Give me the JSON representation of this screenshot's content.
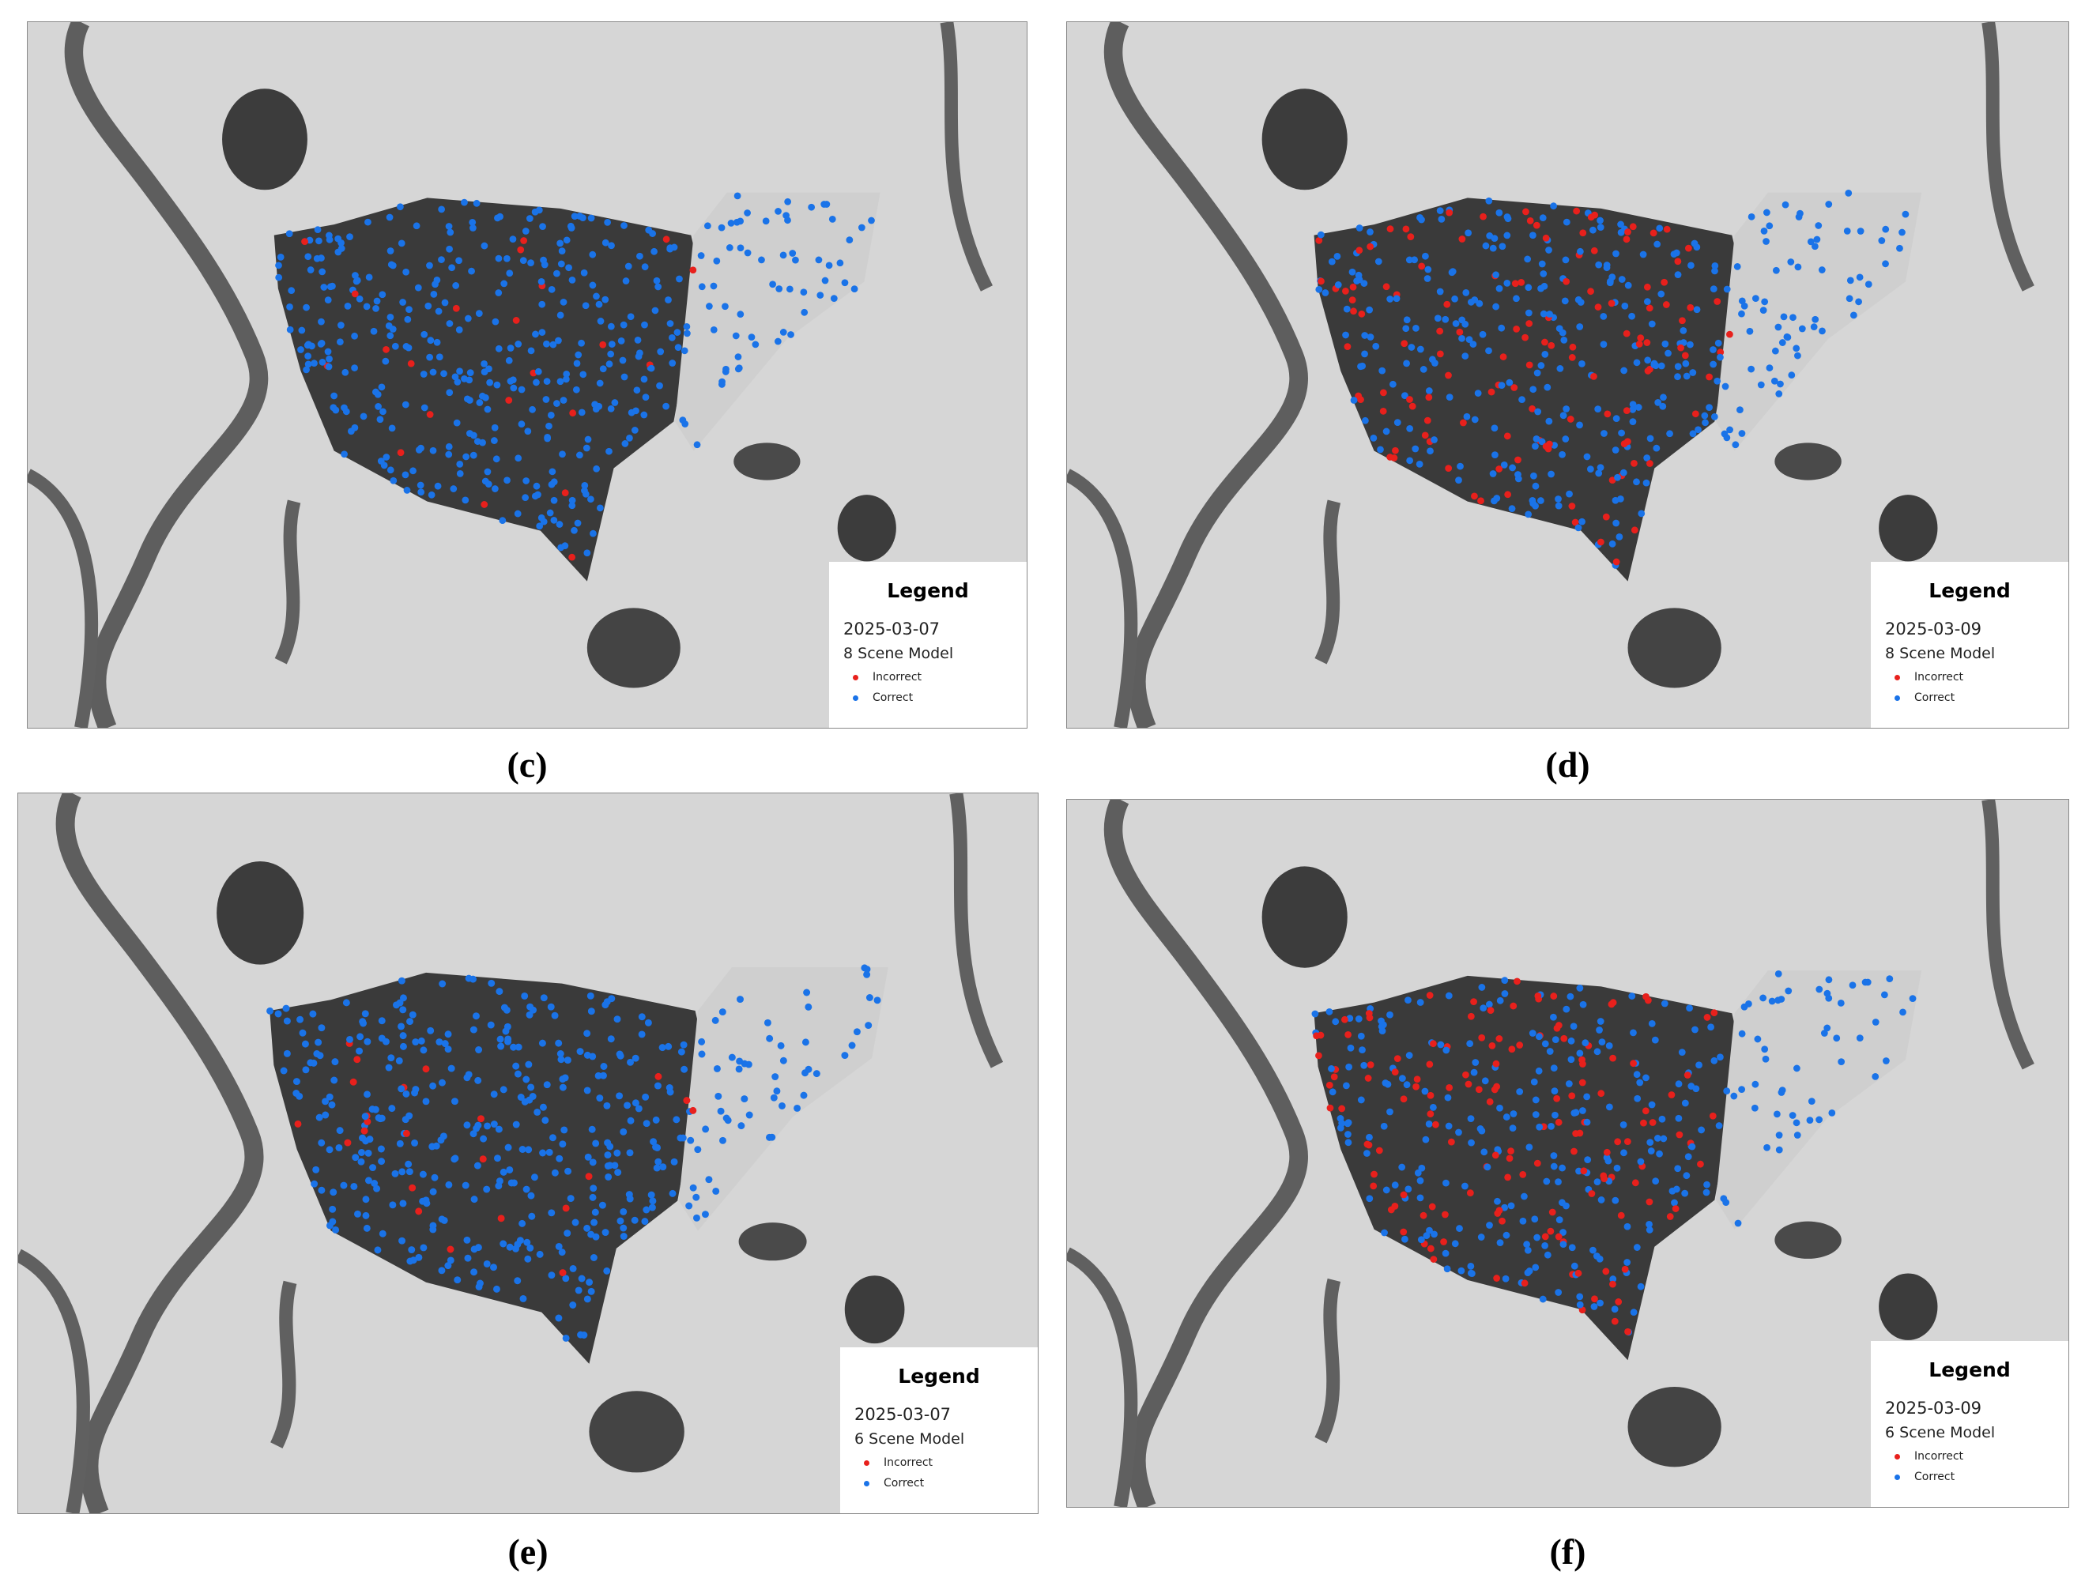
{
  "panels": [
    {
      "label": "(c)",
      "legend": {
        "title": "Legend",
        "date": "2025-03-07",
        "model": "8 Scene Model",
        "items": [
          {
            "name": "Incorrect",
            "color": "#e8201c"
          },
          {
            "name": "Correct",
            "color": "#1a73e8"
          }
        ]
      }
    },
    {
      "label": "(d)",
      "legend": {
        "title": "Legend",
        "date": "2025-03-09",
        "model": "8 Scene Model",
        "items": [
          {
            "name": "Incorrect",
            "color": "#e8201c"
          },
          {
            "name": "Correct",
            "color": "#1a73e8"
          }
        ]
      }
    },
    {
      "label": "(e)",
      "legend": {
        "title": "Legend",
        "date": "2025-03-07",
        "model": "6 Scene Model",
        "items": [
          {
            "name": "Incorrect",
            "color": "#e8201c"
          },
          {
            "name": "Correct",
            "color": "#1a73e8"
          }
        ]
      }
    },
    {
      "label": "(f)",
      "legend": {
        "title": "Legend",
        "date": "2025-03-09",
        "model": "6 Scene Model",
        "items": [
          {
            "name": "Incorrect",
            "color": "#e8201c"
          },
          {
            "name": "Correct",
            "color": "#1a73e8"
          }
        ]
      }
    }
  ]
}
